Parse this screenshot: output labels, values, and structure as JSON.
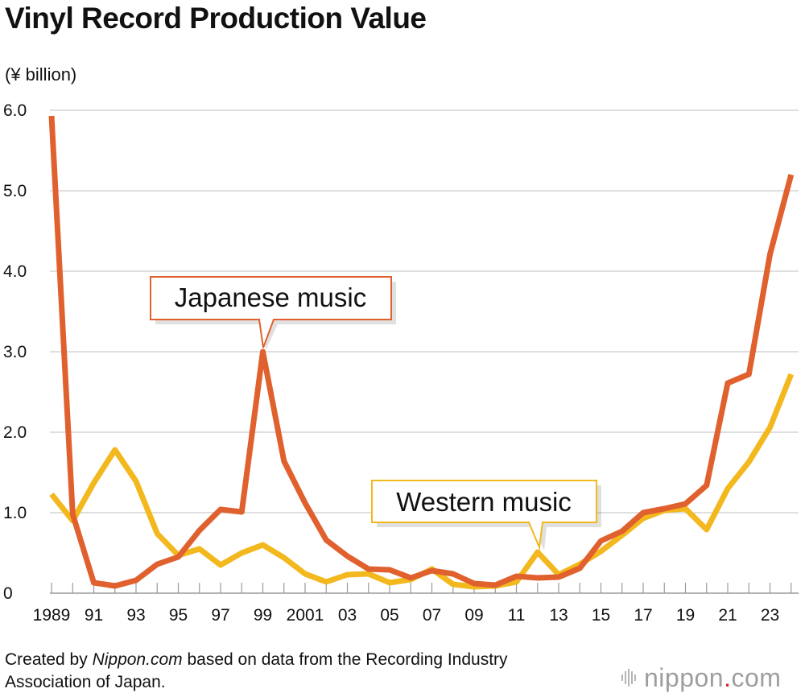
{
  "title": "Vinyl Record Production Value",
  "unit_label": "(¥ billion)",
  "source": {
    "prefix": "Created by ",
    "site": "Nippon.com",
    "line1_rest": " based on data from the Recording Industry",
    "line2": "Association of Japan."
  },
  "logo": {
    "name": "nippon",
    "dot": ".",
    "suffix": "com"
  },
  "colors": {
    "japanese": "#e0602e",
    "western": "#f2b81d",
    "grid": "#cccccc"
  },
  "chart_data": {
    "type": "line",
    "title": "Vinyl Record Production Value",
    "ylabel": "(¥ billion)",
    "xlabel": "",
    "ylim": [
      0,
      6
    ],
    "yticks": [
      "0",
      "1.0",
      "2.0",
      "3.0",
      "4.0",
      "5.0",
      "6.0"
    ],
    "x": [
      1989,
      1990,
      1991,
      1992,
      1993,
      1994,
      1995,
      1996,
      1997,
      1998,
      1999,
      2000,
      2001,
      2002,
      2003,
      2004,
      2005,
      2006,
      2007,
      2008,
      2009,
      2010,
      2011,
      2012,
      2013,
      2014,
      2015,
      2016,
      2017,
      2018,
      2019,
      2020,
      2021,
      2022,
      2023,
      2024
    ],
    "xtick_labels": [
      "1989",
      "91",
      "93",
      "95",
      "97",
      "99",
      "2001",
      "03",
      "05",
      "07",
      "09",
      "11",
      "13",
      "15",
      "17",
      "19",
      "21",
      "23"
    ],
    "series": [
      {
        "name": "Japanese music",
        "values": [
          5.93,
          0.98,
          0.13,
          0.09,
          0.16,
          0.36,
          0.45,
          0.78,
          1.04,
          1.01,
          3.0,
          1.64,
          1.12,
          0.66,
          0.46,
          0.3,
          0.29,
          0.19,
          0.28,
          0.24,
          0.12,
          0.1,
          0.21,
          0.19,
          0.2,
          0.31,
          0.65,
          0.77,
          1.0,
          1.05,
          1.11,
          1.34,
          2.61,
          2.72,
          4.21,
          5.2
        ]
      },
      {
        "name": "Western music",
        "values": [
          1.23,
          0.9,
          1.37,
          1.78,
          1.39,
          0.74,
          0.47,
          0.55,
          0.35,
          0.5,
          0.6,
          0.44,
          0.24,
          0.14,
          0.23,
          0.24,
          0.13,
          0.17,
          0.3,
          0.11,
          0.08,
          0.09,
          0.14,
          0.51,
          0.23,
          0.36,
          0.52,
          0.72,
          0.93,
          1.03,
          1.05,
          0.79,
          1.3,
          1.63,
          2.06,
          2.72
        ]
      }
    ],
    "annotations": [
      "Japanese music",
      "Western music"
    ]
  }
}
